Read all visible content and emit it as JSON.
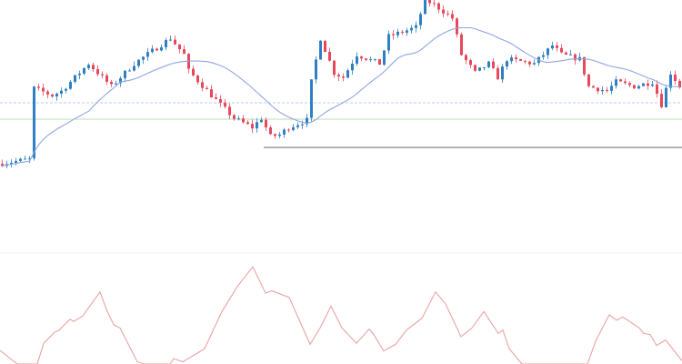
{
  "chart_data": {
    "type": "candlestick",
    "title": "",
    "xlabel": "",
    "ylabel": "",
    "grid": false,
    "candle_count": 150,
    "price_range": [
      0,
      100
    ],
    "price_path": [
      [
        0,
        10
      ],
      [
        7,
        12.5
      ],
      [
        8,
        51.5
      ],
      [
        12,
        47.5
      ],
      [
        14,
        50
      ],
      [
        20,
        65
      ],
      [
        25,
        52.5
      ],
      [
        30,
        65
      ],
      [
        38,
        79
      ],
      [
        41,
        70
      ],
      [
        42,
        61
      ],
      [
        48,
        45
      ],
      [
        52,
        35
      ],
      [
        56,
        30
      ],
      [
        58,
        35
      ],
      [
        60,
        25
      ],
      [
        62,
        26
      ],
      [
        64,
        30
      ],
      [
        68,
        34
      ],
      [
        69,
        55
      ],
      [
        71,
        79
      ],
      [
        74,
        60
      ],
      [
        76,
        57.5
      ],
      [
        79,
        70
      ],
      [
        84,
        65
      ],
      [
        86,
        80
      ],
      [
        92,
        85
      ],
      [
        94,
        100
      ],
      [
        96,
        97.5
      ],
      [
        100,
        90
      ],
      [
        102,
        70
      ],
      [
        105,
        60
      ],
      [
        108,
        65
      ],
      [
        110,
        57.5
      ],
      [
        112,
        67.5
      ],
      [
        118,
        65
      ],
      [
        122,
        75
      ],
      [
        124,
        70
      ],
      [
        128,
        67.5
      ],
      [
        130,
        52.5
      ],
      [
        134,
        50
      ],
      [
        136,
        55
      ],
      [
        140,
        52.5
      ],
      [
        144,
        55
      ],
      [
        146,
        42.5
      ],
      [
        148,
        60
      ],
      [
        150,
        52.5
      ]
    ],
    "moving_average": {
      "period": 20,
      "color": "#8fa6e0"
    },
    "horizontal_lines": [
      {
        "level": 43.5,
        "style": "dashed",
        "color": "#bccbf0",
        "from_index": 0
      },
      {
        "level": 34.5,
        "style": "solid",
        "color": "#b9dbb1",
        "from_index": 0
      },
      {
        "level": 19,
        "style": "solid",
        "color": "#9a9a9a",
        "from_index": 58
      }
    ],
    "oscillator": {
      "range": [
        0,
        100
      ],
      "color": "#e9a3a3",
      "points": [
        [
          0,
          12.5
        ],
        [
          3.8,
          0
        ],
        [
          8.2,
          0
        ],
        [
          9.6,
          19
        ],
        [
          12,
          29
        ],
        [
          13,
          31
        ],
        [
          15.4,
          41
        ],
        [
          16.2,
          39
        ],
        [
          18.2,
          44
        ],
        [
          22,
          66
        ],
        [
          23.4,
          50
        ],
        [
          25,
          36
        ],
        [
          26.4,
          33
        ],
        [
          30.2,
          2
        ],
        [
          31.6,
          0
        ],
        [
          37.4,
          0
        ],
        [
          38.2,
          5
        ],
        [
          40.2,
          2
        ],
        [
          42.2,
          7
        ],
        [
          45,
          14
        ],
        [
          48.8,
          48
        ],
        [
          52.2,
          71
        ],
        [
          55.6,
          89
        ],
        [
          58.4,
          65
        ],
        [
          59.8,
          67
        ],
        [
          63.6,
          61
        ],
        [
          68.2,
          18
        ],
        [
          70.4,
          33
        ],
        [
          72.8,
          53
        ],
        [
          75.2,
          33
        ],
        [
          78.4,
          19
        ],
        [
          81.2,
          32
        ],
        [
          82.2,
          27
        ],
        [
          84.4,
          12
        ],
        [
          87,
          18
        ],
        [
          89.4,
          31
        ],
        [
          92.8,
          42
        ],
        [
          95.8,
          66
        ],
        [
          98,
          55
        ],
        [
          101.4,
          25
        ],
        [
          103.8,
          33
        ],
        [
          106.4,
          48
        ],
        [
          109.6,
          28
        ],
        [
          110.6,
          31
        ],
        [
          112,
          14
        ],
        [
          114.8,
          0
        ],
        [
          129.2,
          0
        ],
        [
          131,
          21
        ],
        [
          134,
          45
        ],
        [
          135.6,
          40
        ],
        [
          137,
          43
        ],
        [
          140.6,
          33
        ],
        [
          141.6,
          28
        ],
        [
          143,
          27
        ],
        [
          144.4,
          17
        ],
        [
          146.4,
          22
        ],
        [
          150,
          3
        ]
      ]
    },
    "colors": {
      "up": "#2f7fc3",
      "down": "#e8485c",
      "separator": "#f0f0f0"
    }
  }
}
